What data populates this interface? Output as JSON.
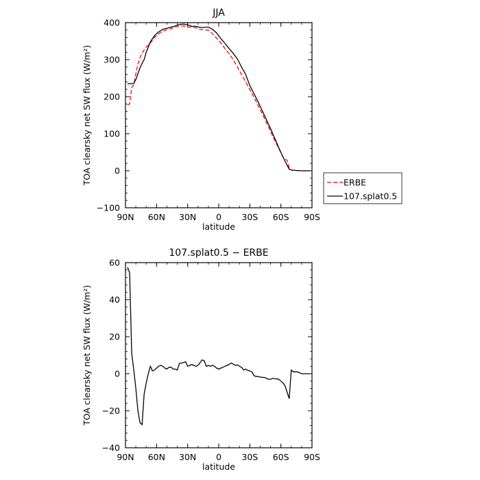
{
  "chart_data": [
    {
      "type": "line",
      "title": "JJA",
      "xlabel": "latitude",
      "ylabel": "TOA clearsky net SW flux (W/m²)",
      "xlim": [
        90,
        -90
      ],
      "ylim": [
        -100,
        400
      ],
      "x_ticks": [
        90,
        60,
        30,
        0,
        -30,
        -60,
        -90
      ],
      "x_tick_labels": [
        "90N",
        "60N",
        "30N",
        "0",
        "30S",
        "60S",
        "90S"
      ],
      "y_ticks": [
        -100,
        0,
        100,
        200,
        300,
        400
      ],
      "y_tick_labels": [
        "−100",
        "0",
        "100",
        "200",
        "300",
        "400"
      ],
      "legend_position": "right",
      "series": [
        {
          "name": "ERBE",
          "color": "#ff0000",
          "dash": "dashed",
          "x": [
            88,
            86,
            84,
            82,
            80,
            78,
            76,
            74,
            72,
            70,
            66,
            62,
            58,
            54,
            50,
            46,
            42,
            38,
            34,
            30,
            26,
            22,
            18,
            14,
            10,
            6,
            2,
            -2,
            -6,
            -10,
            -14,
            -18,
            -22,
            -26,
            -30,
            -34,
            -38,
            -42,
            -46,
            -50,
            -54,
            -58,
            -62,
            -66,
            -68,
            -70,
            -74,
            -78,
            -82,
            -86,
            -88
          ],
          "y": [
            178,
            180,
            225,
            232,
            262,
            288,
            305,
            318,
            326,
            334,
            345,
            360,
            370,
            377,
            381,
            384,
            388,
            391,
            391,
            388,
            388,
            386,
            382,
            380,
            380,
            370,
            358,
            345,
            330,
            316,
            300,
            280,
            260,
            240,
            219,
            198,
            176,
            154,
            130,
            106,
            82,
            60,
            37,
            28,
            7,
            2,
            1,
            0,
            0,
            0,
            0
          ]
        },
        {
          "name": "107.splat0.5",
          "color": "#000000",
          "dash": "solid",
          "x": [
            88,
            86,
            84,
            82,
            80,
            78,
            76,
            74,
            72,
            70,
            66,
            62,
            58,
            54,
            50,
            46,
            42,
            38,
            34,
            30,
            26,
            22,
            18,
            14,
            10,
            6,
            2,
            -2,
            -6,
            -10,
            -14,
            -18,
            -22,
            -26,
            -30,
            -34,
            -38,
            -42,
            -46,
            -50,
            -54,
            -58,
            -62,
            -66,
            -68,
            -70,
            -74,
            -78,
            -82,
            -86,
            -88
          ],
          "y": [
            235,
            235,
            235,
            236,
            246,
            262,
            278,
            290,
            300,
            320,
            348,
            365,
            375,
            382,
            385,
            388,
            391,
            395,
            396,
            394,
            390,
            390,
            387,
            387,
            388,
            382,
            372,
            357,
            344,
            330,
            317,
            302,
            280,
            260,
            230,
            208,
            186,
            162,
            138,
            114,
            88,
            62,
            37,
            15,
            4,
            2,
            1,
            0,
            0,
            0,
            0
          ]
        }
      ]
    },
    {
      "type": "line",
      "title": "107.splat0.5 − ERBE",
      "xlabel": "latitude",
      "ylabel": "TOA clearsky net SW flux (W/m²)",
      "xlim": [
        90,
        -90
      ],
      "ylim": [
        -40,
        60
      ],
      "x_ticks": [
        90,
        60,
        30,
        0,
        -30,
        -60,
        -90
      ],
      "x_tick_labels": [
        "90N",
        "60N",
        "30N",
        "0",
        "30S",
        "60S",
        "90S"
      ],
      "y_ticks": [
        -40,
        -20,
        0,
        20,
        40,
        60
      ],
      "y_tick_labels": [
        "−40",
        "−20",
        "0",
        "20",
        "40",
        "60"
      ],
      "series": [
        {
          "color": "#000000",
          "dash": "solid",
          "x": [
            88,
            86,
            84,
            82,
            80,
            78,
            76,
            74,
            72,
            70,
            68,
            66,
            64,
            62,
            60,
            58,
            56,
            54,
            52,
            50,
            48,
            46,
            44,
            42,
            40,
            38,
            36,
            34,
            32,
            30,
            28,
            26,
            24,
            22,
            20,
            18,
            16,
            14,
            12,
            10,
            8,
            6,
            4,
            2,
            0,
            -2,
            -4,
            -6,
            -8,
            -10,
            -12,
            -14,
            -16,
            -18,
            -20,
            -22,
            -24,
            -26,
            -28,
            -30,
            -32,
            -34,
            -36,
            -38,
            -40,
            -42,
            -44,
            -46,
            -48,
            -50,
            -52,
            -54,
            -56,
            -58,
            -60,
            -62,
            -64,
            -66,
            -68,
            -70,
            -72,
            -74,
            -76,
            -78,
            -80,
            -82,
            -84,
            -86,
            -88
          ],
          "y": [
            57.5,
            54.5,
            11,
            2,
            -8,
            -20,
            -26.5,
            -27.5,
            -11,
            -5,
            0,
            4,
            1.5,
            2,
            3,
            4,
            4.5,
            4,
            3,
            2.5,
            3.5,
            3.5,
            2.5,
            2.5,
            2,
            5.5,
            5.8,
            6,
            6.5,
            4,
            4.5,
            5,
            4.5,
            4,
            4.5,
            6,
            7.5,
            7,
            4,
            4.5,
            4,
            4.5,
            4,
            3,
            2.5,
            3,
            3.5,
            4,
            4.5,
            5,
            5.8,
            5.2,
            4.5,
            4.8,
            4,
            3.5,
            2,
            2.5,
            1.8,
            1.5,
            1,
            -1,
            -1.5,
            -1.5,
            -1.8,
            -2,
            -2,
            -2.5,
            -3,
            -3,
            -2.5,
            -2.7,
            -2.8,
            -3,
            -4,
            -5,
            -6.5,
            -10,
            -13.5,
            2,
            1,
            1,
            1,
            0.5,
            0,
            0,
            0,
            0,
            0
          ]
        }
      ]
    }
  ]
}
